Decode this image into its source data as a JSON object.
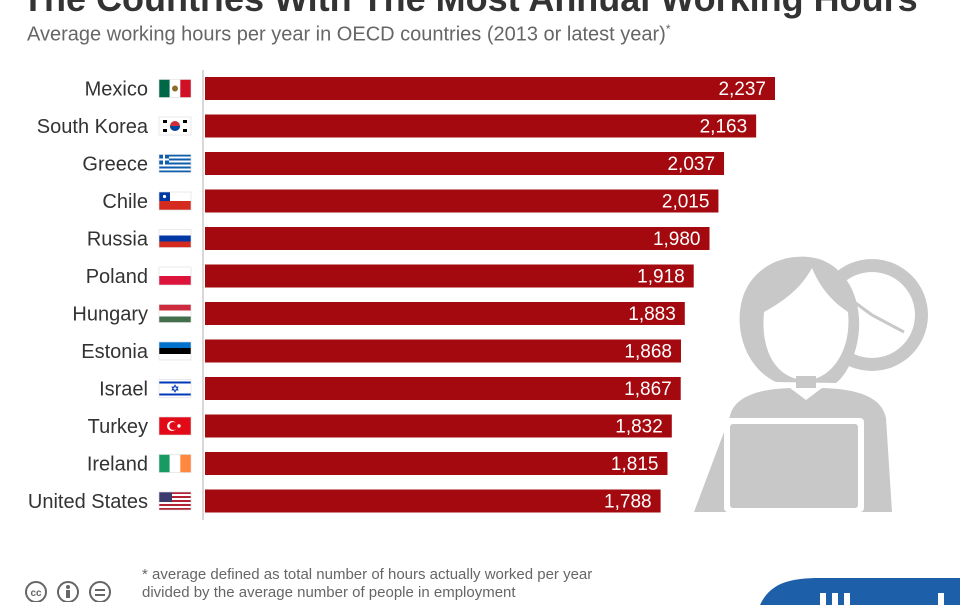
{
  "title": "The Countries With The Most Annual Working Hours",
  "subtitle": "Average working hours per year in OECD countries (2013 or latest year)",
  "subtitle_mark": "*",
  "footnote": "* average defined as total number of hours actually worked per year divided by the average number of people in employment",
  "colors": {
    "bar": "#a3090e",
    "bar_text": "#ffffff",
    "label": "#333333",
    "axis": "#cccccc",
    "illustration": "#c8c8c8",
    "brand": "#1d5fa8"
  },
  "chart_data": {
    "type": "bar",
    "orientation": "horizontal",
    "title": "The Countries With The Most Annual Working Hours",
    "subtitle": "Average working hours per year in OECD countries (2013 or latest year)",
    "categories": [
      "Mexico",
      "South Korea",
      "Greece",
      "Chile",
      "Russia",
      "Poland",
      "Hungary",
      "Estonia",
      "Israel",
      "Turkey",
      "Ireland",
      "United States"
    ],
    "values": [
      2237,
      2163,
      2037,
      2015,
      1980,
      1918,
      1883,
      1868,
      1867,
      1832,
      1815,
      1788
    ],
    "value_labels": [
      "2,237",
      "2,163",
      "2,037",
      "2,015",
      "1,980",
      "1,918",
      "1,883",
      "1,868",
      "1,867",
      "1,832",
      "1,815",
      "1,788"
    ],
    "flags": [
      "mexico-flag-icon",
      "south-korea-flag-icon",
      "greece-flag-icon",
      "chile-flag-icon",
      "russia-flag-icon",
      "poland-flag-icon",
      "hungary-flag-icon",
      "estonia-flag-icon",
      "israel-flag-icon",
      "turkey-flag-icon",
      "ireland-flag-icon",
      "united-states-flag-icon"
    ],
    "xlim": [
      0,
      2237
    ],
    "grid": false,
    "legend": "none"
  }
}
